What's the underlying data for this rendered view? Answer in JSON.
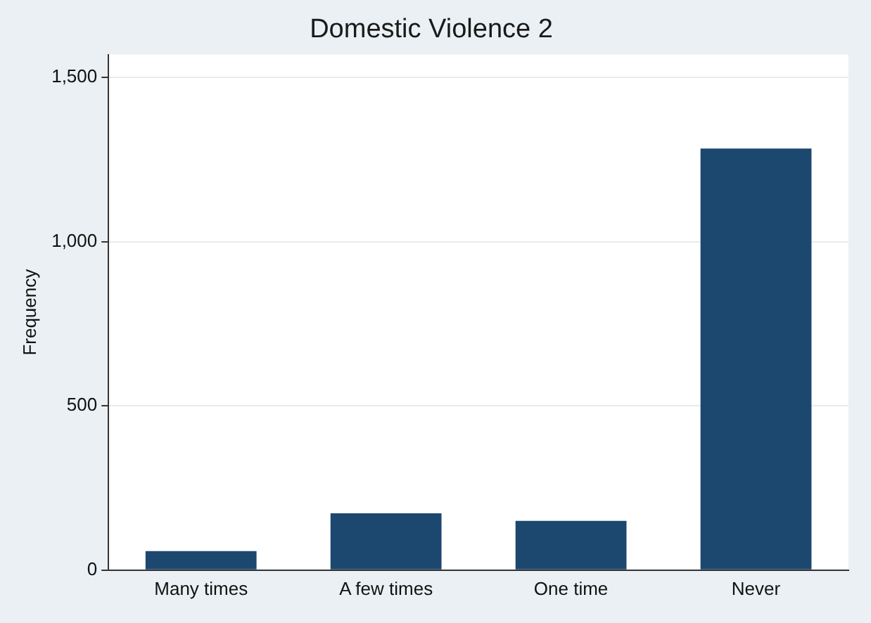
{
  "chart_data": {
    "type": "bar",
    "title": "Domestic Violence 2",
    "ylabel": "Frequency",
    "categories": [
      "Many times",
      "A few times",
      "One time",
      "Never"
    ],
    "values": [
      58,
      173,
      150,
      1284
    ],
    "color": "#1c476f",
    "ylim": [
      0,
      1570
    ],
    "yticks": [
      {
        "value": 0,
        "label": "0"
      },
      {
        "value": 500,
        "label": "500"
      },
      {
        "value": 1000,
        "label": "1,000"
      },
      {
        "value": 1500,
        "label": "1,500"
      }
    ],
    "grid": "y",
    "legend": false
  }
}
